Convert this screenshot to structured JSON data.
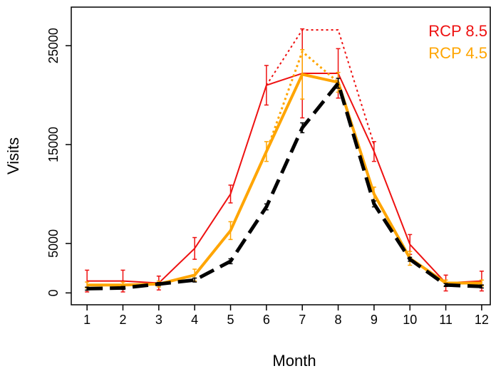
{
  "chart_data": {
    "type": "line",
    "x_label": "Month",
    "y_label": "Visits",
    "x": [
      1,
      2,
      3,
      4,
      5,
      6,
      7,
      8,
      9,
      10,
      11,
      12
    ],
    "xlim": [
      0.56,
      12.24
    ],
    "xticks": [
      1,
      2,
      3,
      4,
      5,
      6,
      7,
      8,
      9,
      10,
      11,
      12
    ],
    "ylim": [
      -1200,
      28900
    ],
    "yticks": [
      0,
      5000,
      15000,
      25000
    ],
    "legend": "top-right",
    "series": [
      {
        "color": "#ee1111",
        "linestyle": "dotted",
        "linewidth": 2,
        "values": [
          null,
          null,
          null,
          null,
          null,
          21000,
          26600,
          26600,
          15000,
          null,
          null,
          null
        ]
      },
      {
        "name": "RCP 8.5",
        "color": "#ee1111",
        "linestyle": "solid",
        "linewidth": 2,
        "values": [
          1200,
          1200,
          1000,
          4500,
          10000,
          21000,
          22200,
          22200,
          14300,
          4900,
          1000,
          1200
        ],
        "errors": [
          1100,
          1100,
          700,
          1100,
          900,
          2000,
          4500,
          2500,
          1000,
          1000,
          800,
          1000
        ]
      },
      {
        "color": "#ffa500",
        "linestyle": "dotted",
        "linewidth": 3,
        "values": [
          null,
          null,
          null,
          null,
          null,
          14300,
          24400,
          21300,
          null,
          null,
          null,
          null
        ]
      },
      {
        "name": "RCP 4.5",
        "color": "#ffa500",
        "linestyle": "solid",
        "linewidth": 4,
        "values": [
          800,
          800,
          900,
          1800,
          6300,
          14300,
          22100,
          21300,
          10000,
          3500,
          1000,
          1000
        ],
        "errors": [
          300,
          300,
          300,
          600,
          900,
          1000,
          2500,
          1000,
          700,
          700,
          300,
          300
        ]
      },
      {
        "color": "#000000",
        "linestyle": "dashed",
        "linewidth": 5,
        "values": [
          430,
          500,
          900,
          1300,
          3200,
          8700,
          16700,
          21200,
          9000,
          3400,
          800,
          650
        ],
        "errors": [
          150,
          150,
          150,
          200,
          250,
          300,
          500,
          500,
          300,
          200,
          150,
          150
        ]
      }
    ]
  }
}
